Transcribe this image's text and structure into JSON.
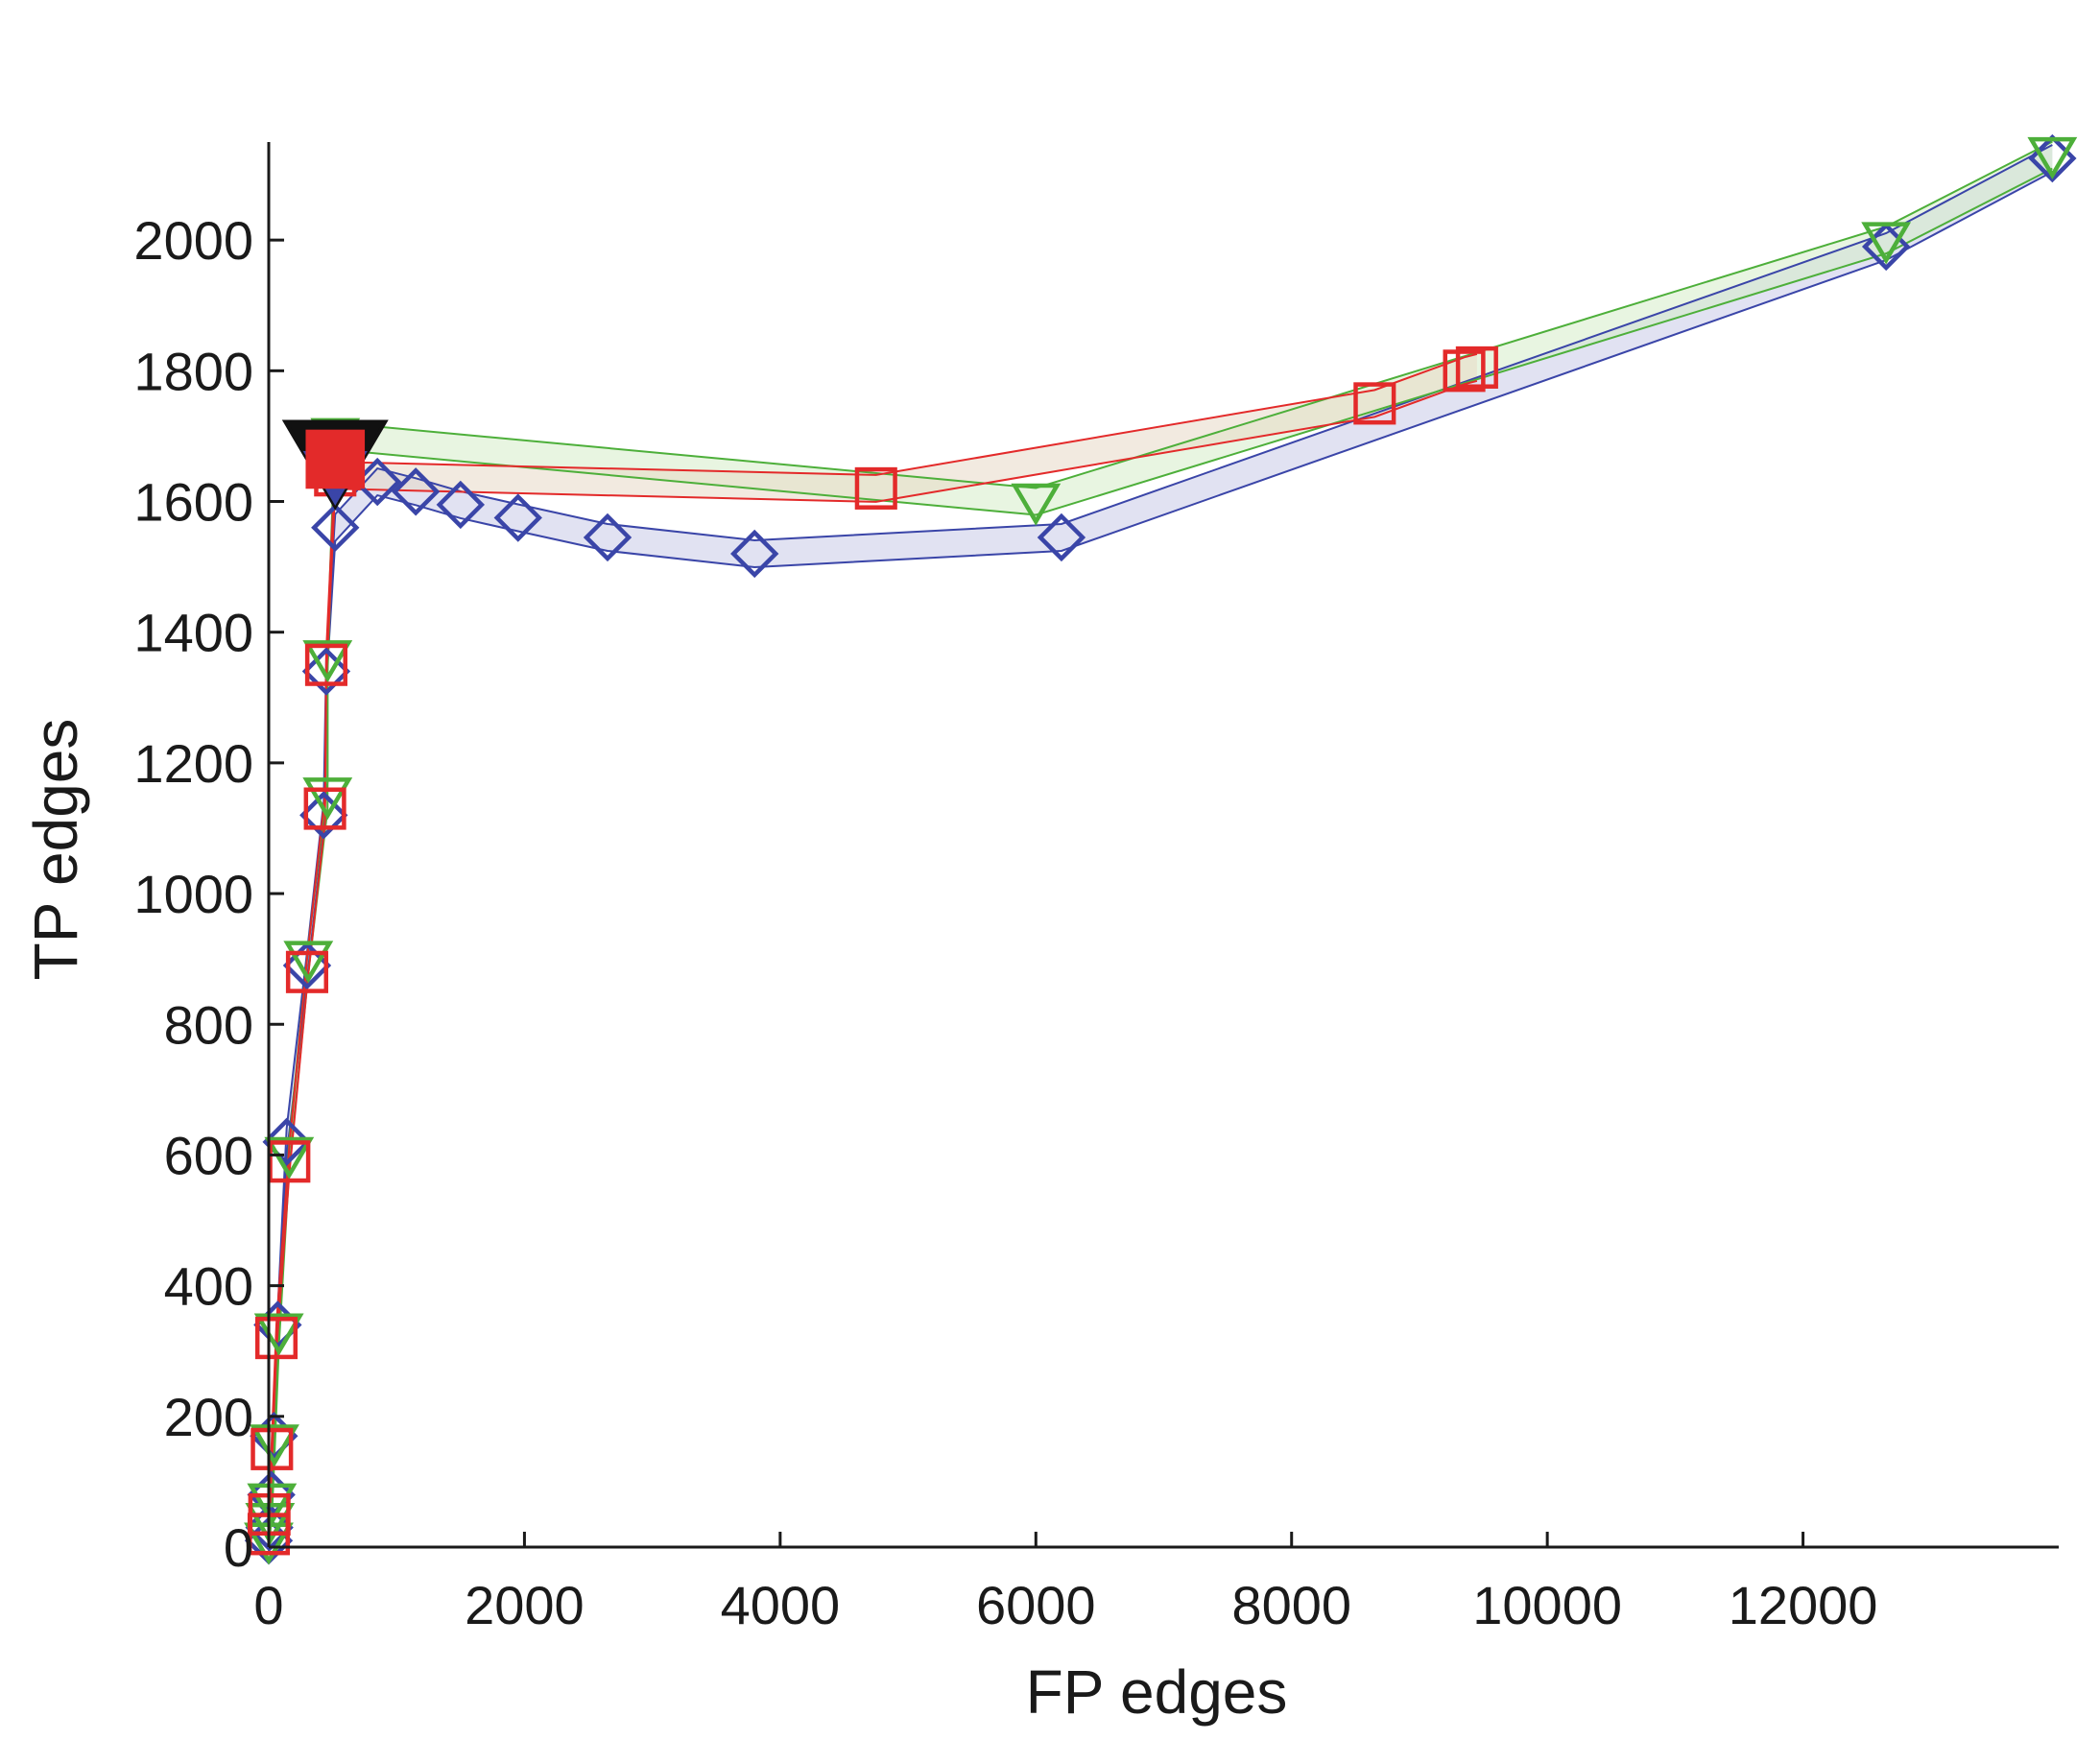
{
  "chart_data": {
    "type": "line",
    "title": "",
    "xlabel": "FP edges",
    "ylabel": "TP edges",
    "xlim": [
      0,
      14000
    ],
    "ylim": [
      0,
      2150
    ],
    "xticks": [
      0,
      2000,
      4000,
      6000,
      8000,
      10000,
      12000
    ],
    "yticks": [
      0,
      200,
      400,
      600,
      800,
      1000,
      1200,
      1400,
      1600,
      1800,
      2000
    ],
    "grid": false,
    "legend": "none",
    "series": [
      {
        "marker": "diamond",
        "color": "#3a45a8",
        "band_color": "#c8cbe8",
        "points": [
          [
            0,
            10
          ],
          [
            5,
            30
          ],
          [
            20,
            80
          ],
          [
            40,
            170
          ],
          [
            70,
            340
          ],
          [
            140,
            620
          ],
          [
            300,
            890
          ],
          [
            430,
            1120
          ],
          [
            450,
            1340
          ],
          [
            520,
            1560
          ],
          [
            850,
            1630
          ],
          [
            1150,
            1615
          ],
          [
            1500,
            1595
          ],
          [
            1950,
            1575
          ],
          [
            2650,
            1545
          ],
          [
            3800,
            1520
          ],
          [
            6200,
            1545
          ],
          [
            12650,
            1990
          ],
          [
            13950,
            2125
          ]
        ]
      },
      {
        "marker": "triangle-down",
        "color": "#4daf3a",
        "band_color": "#d6ecc9",
        "points": [
          [
            0,
            10
          ],
          [
            10,
            40
          ],
          [
            25,
            70
          ],
          [
            45,
            160
          ],
          [
            80,
            330
          ],
          [
            160,
            600
          ],
          [
            310,
            900
          ],
          [
            460,
            1150
          ],
          [
            460,
            1360
          ],
          [
            520,
            1700
          ],
          [
            6000,
            1600
          ],
          [
            12650,
            2000
          ],
          [
            13950,
            2130
          ]
        ]
      },
      {
        "marker": "square",
        "color": "#e32a2a",
        "band_color": "#e8d9c6",
        "points": [
          [
            0,
            20
          ],
          [
            5,
            50
          ],
          [
            25,
            150
          ],
          [
            60,
            320
          ],
          [
            160,
            590
          ],
          [
            300,
            880
          ],
          [
            440,
            1130
          ],
          [
            450,
            1350
          ],
          [
            520,
            1640
          ],
          [
            4750,
            1620
          ],
          [
            8650,
            1750
          ],
          [
            9350,
            1800
          ],
          [
            9450,
            1805
          ]
        ]
      }
    ],
    "highlight_markers": [
      {
        "shape": "triangle-down",
        "color": "#111111",
        "x": 520,
        "y": 1650
      },
      {
        "shape": "square",
        "color": "#e32a2a",
        "x": 520,
        "y": 1650
      }
    ]
  }
}
